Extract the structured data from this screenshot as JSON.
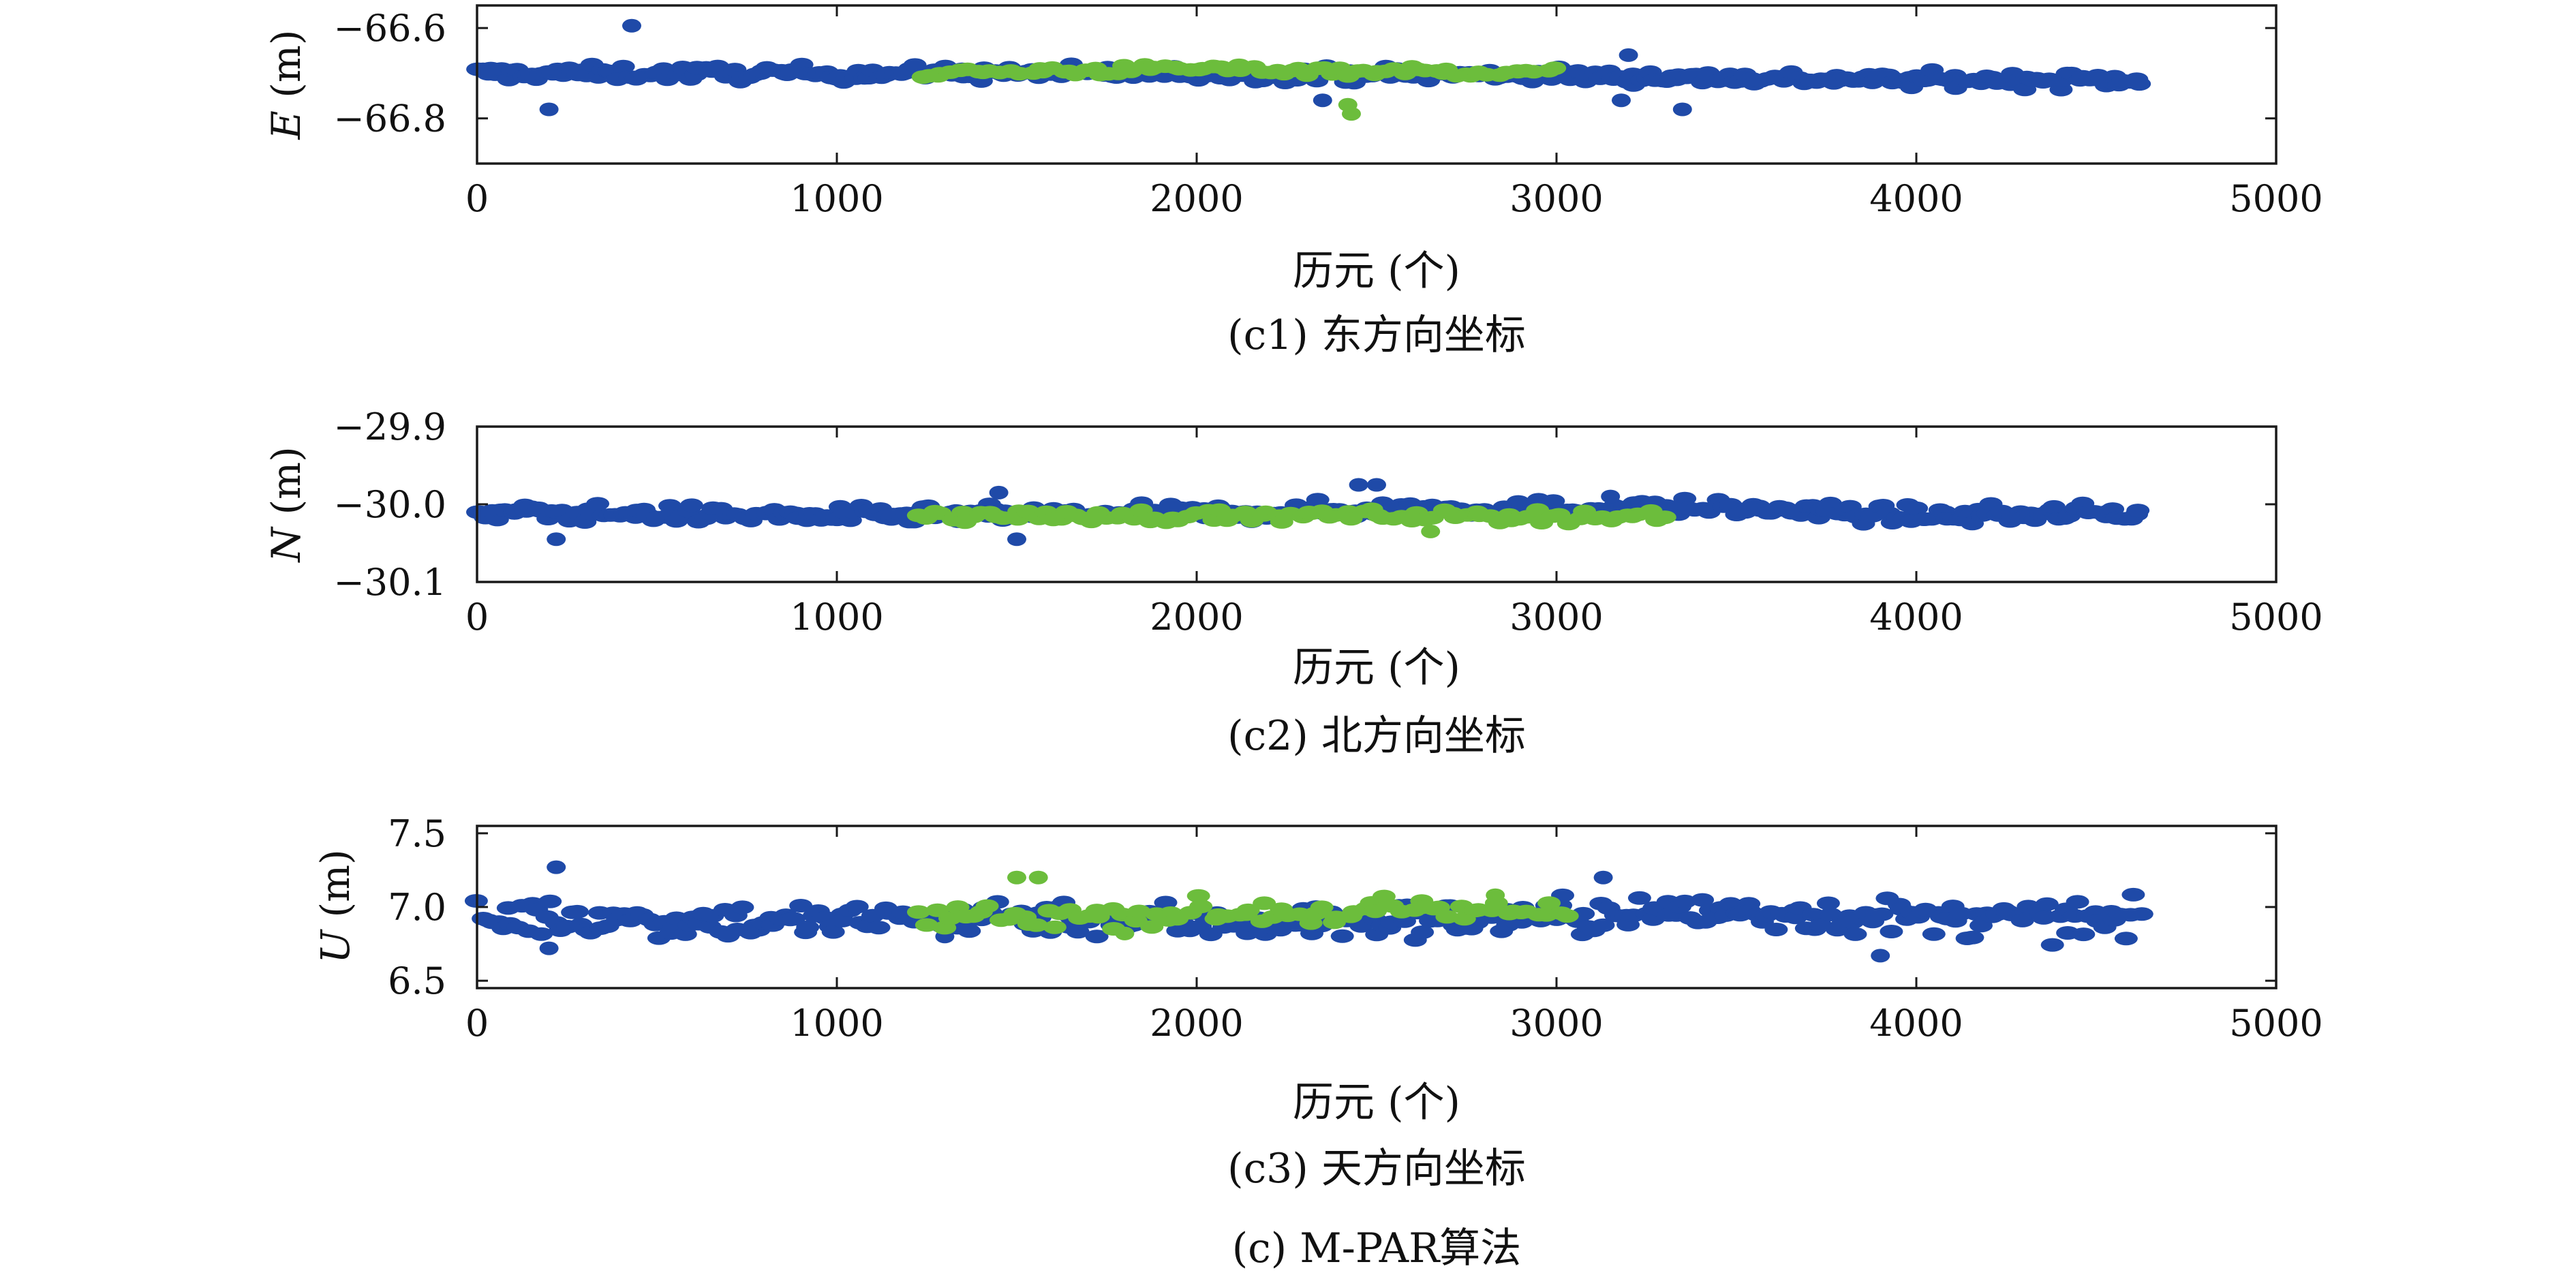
{
  "figure_caption": "(c) M-PAR算法",
  "colors": {
    "primary_series": "#1f4aa8",
    "secondary_series": "#6cbd3c",
    "axes": "#1a1a1a"
  },
  "chart_data": [
    {
      "type": "scatter",
      "title": "",
      "caption": "(c1) 东方向坐标",
      "xlabel": "历元 (个)",
      "ylabel": "E (m)",
      "ylabel_symbol": "E",
      "ylabel_unit": " (m)",
      "xlim": [
        0,
        5000
      ],
      "ylim": [
        -66.9,
        -66.55
      ],
      "xticks": [
        0,
        1000,
        2000,
        3000,
        4000,
        5000
      ],
      "xtick_labels": [
        "0",
        "1000",
        "2000",
        "3000",
        "4000",
        "5000"
      ],
      "yticks": [
        -66.6,
        -66.8
      ],
      "ytick_labels": [
        "−66.6",
        "−66.8"
      ],
      "grid": false,
      "series": [
        {
          "color": "#1f4aa8",
          "x_range": [
            0,
            4620
          ],
          "trend": [
            [
              0,
              -66.7
            ],
            [
              1000,
              -66.7
            ],
            [
              2000,
              -66.7
            ],
            [
              3000,
              -66.705
            ],
            [
              4000,
              -66.715
            ],
            [
              4620,
              -66.715
            ]
          ],
          "spread": 0.012,
          "outliers": [
            [
              430,
              -66.595
            ],
            [
              200,
              -66.78
            ],
            [
              3350,
              -66.78
            ],
            [
              3200,
              -66.66
            ],
            [
              3180,
              -66.76
            ],
            [
              2350,
              -66.76
            ]
          ]
        },
        {
          "color": "#6cbd3c",
          "x_range": [
            1230,
            3000
          ],
          "trend": [
            [
              1230,
              -66.7
            ],
            [
              2000,
              -66.69
            ],
            [
              3000,
              -66.7
            ]
          ],
          "spread": 0.008,
          "outliers": [
            [
              2430,
              -66.79
            ],
            [
              2420,
              -66.77
            ]
          ]
        }
      ]
    },
    {
      "type": "scatter",
      "title": "",
      "caption": "(c2) 北方向坐标",
      "xlabel": "历元 (个)",
      "ylabel": "N (m)",
      "ylabel_symbol": "N",
      "ylabel_unit": " (m)",
      "xlim": [
        0,
        5000
      ],
      "ylim": [
        -30.1,
        -29.9
      ],
      "xticks": [
        0,
        1000,
        2000,
        3000,
        4000,
        5000
      ],
      "xtick_labels": [
        "0",
        "1000",
        "2000",
        "3000",
        "4000",
        "5000"
      ],
      "yticks": [
        -29.9,
        -30.0,
        -30.1
      ],
      "ytick_labels": [
        "−29.9",
        "−30.0",
        "−30.1"
      ],
      "grid": false,
      "series": [
        {
          "color": "#1f4aa8",
          "x_range": [
            0,
            4620
          ],
          "trend": [
            [
              0,
              -30.01
            ],
            [
              1000,
              -30.015
            ],
            [
              2000,
              -30.012
            ],
            [
              2600,
              -30.005
            ],
            [
              3500,
              -30.005
            ],
            [
              4000,
              -30.015
            ],
            [
              4620,
              -30.01
            ]
          ],
          "spread": 0.008,
          "outliers": [
            [
              2450,
              -29.975
            ],
            [
              2500,
              -29.975
            ],
            [
              1450,
              -29.985
            ],
            [
              3150,
              -29.99
            ],
            [
              1500,
              -30.045
            ],
            [
              220,
              -30.045
            ]
          ]
        },
        {
          "color": "#6cbd3c",
          "x_range": [
            1230,
            3300
          ],
          "trend": [
            [
              1230,
              -30.015
            ],
            [
              2500,
              -30.015
            ],
            [
              3300,
              -30.015
            ]
          ],
          "spread": 0.006,
          "outliers": [
            [
              2650,
              -30.035
            ]
          ]
        }
      ]
    },
    {
      "type": "scatter",
      "title": "",
      "caption": "(c3) 天方向坐标",
      "xlabel": "历元 (个)",
      "ylabel": "U (m)",
      "ylabel_symbol": "U",
      "ylabel_unit": " (m)",
      "xlim": [
        0,
        5000
      ],
      "ylim": [
        6.45,
        7.55
      ],
      "xticks": [
        0,
        1000,
        2000,
        3000,
        4000,
        5000
      ],
      "xtick_labels": [
        "0",
        "1000",
        "2000",
        "3000",
        "4000",
        "5000"
      ],
      "yticks": [
        7.5,
        7.0,
        6.5
      ],
      "ytick_labels": [
        "7.5",
        "7.0",
        "6.5"
      ],
      "grid": false,
      "series": [
        {
          "color": "#1f4aa8",
          "x_range": [
            0,
            4620
          ],
          "trend": [
            [
              0,
              6.93
            ],
            [
              1000,
              6.9
            ],
            [
              1500,
              6.95
            ],
            [
              2000,
              6.9
            ],
            [
              2500,
              6.9
            ],
            [
              3500,
              6.97
            ],
            [
              4000,
              6.92
            ],
            [
              4620,
              6.9
            ]
          ],
          "spread": 0.09,
          "outliers": [
            [
              220,
              7.27
            ],
            [
              3130,
              7.2
            ],
            [
              3900,
              6.67
            ],
            [
              200,
              6.72
            ],
            [
              1300,
              6.8
            ]
          ]
        },
        {
          "color": "#6cbd3c",
          "x_range": [
            1230,
            3050
          ],
          "trend": [
            [
              1230,
              6.93
            ],
            [
              2000,
              6.96
            ],
            [
              3050,
              6.97
            ]
          ],
          "spread": 0.06,
          "outliers": [
            [
              1500,
              7.2
            ],
            [
              1560,
              7.2
            ],
            [
              2830,
              7.08
            ],
            [
              1800,
              6.82
            ]
          ]
        }
      ]
    }
  ]
}
